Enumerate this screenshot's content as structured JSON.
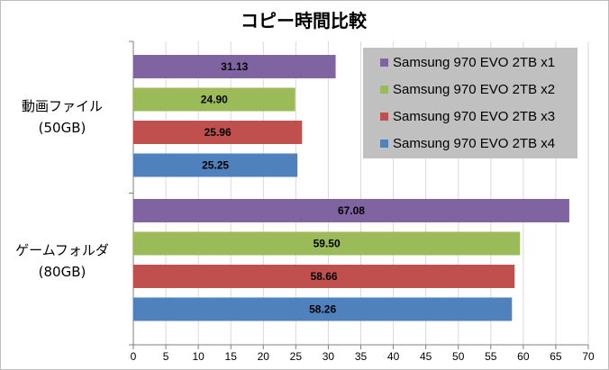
{
  "chart_data": {
    "type": "bar",
    "orientation": "horizontal",
    "title": "コピー時間比較",
    "xlabel": "",
    "ylabel": "",
    "xlim": [
      0,
      70
    ],
    "x_ticks": [
      0,
      5,
      10,
      15,
      20,
      25,
      30,
      35,
      40,
      45,
      50,
      55,
      60,
      65,
      70
    ],
    "grid": "vertical",
    "legend_position": "top-right",
    "categories": [
      {
        "line1": "動画ファイル",
        "line2": "(50GB)"
      },
      {
        "line1": "ゲームフォルダ",
        "line2": "(80GB)"
      }
    ],
    "series": [
      {
        "name": "Samsung 970 EVO 2TB x1",
        "color": "#8064a2",
        "values": [
          31.13,
          67.08
        ],
        "labels": [
          "31.13",
          "67.08"
        ]
      },
      {
        "name": "Samsung 970 EVO 2TB x2",
        "color": "#9bbb59",
        "values": [
          24.9,
          59.5
        ],
        "labels": [
          "24.90",
          "59.50"
        ]
      },
      {
        "name": "Samsung 970 EVO 2TB x3",
        "color": "#c0504d",
        "values": [
          25.96,
          58.66
        ],
        "labels": [
          "25.96",
          "58.66"
        ]
      },
      {
        "name": "Samsung 970 EVO 2TB x4",
        "color": "#4f81bd",
        "values": [
          25.25,
          58.26
        ],
        "labels": [
          "25.25",
          "58.26"
        ]
      }
    ],
    "colors": {
      "legend_background": "#c0c0c0",
      "grid": "#d9d9d9",
      "axis": "#7f7f7f"
    }
  }
}
